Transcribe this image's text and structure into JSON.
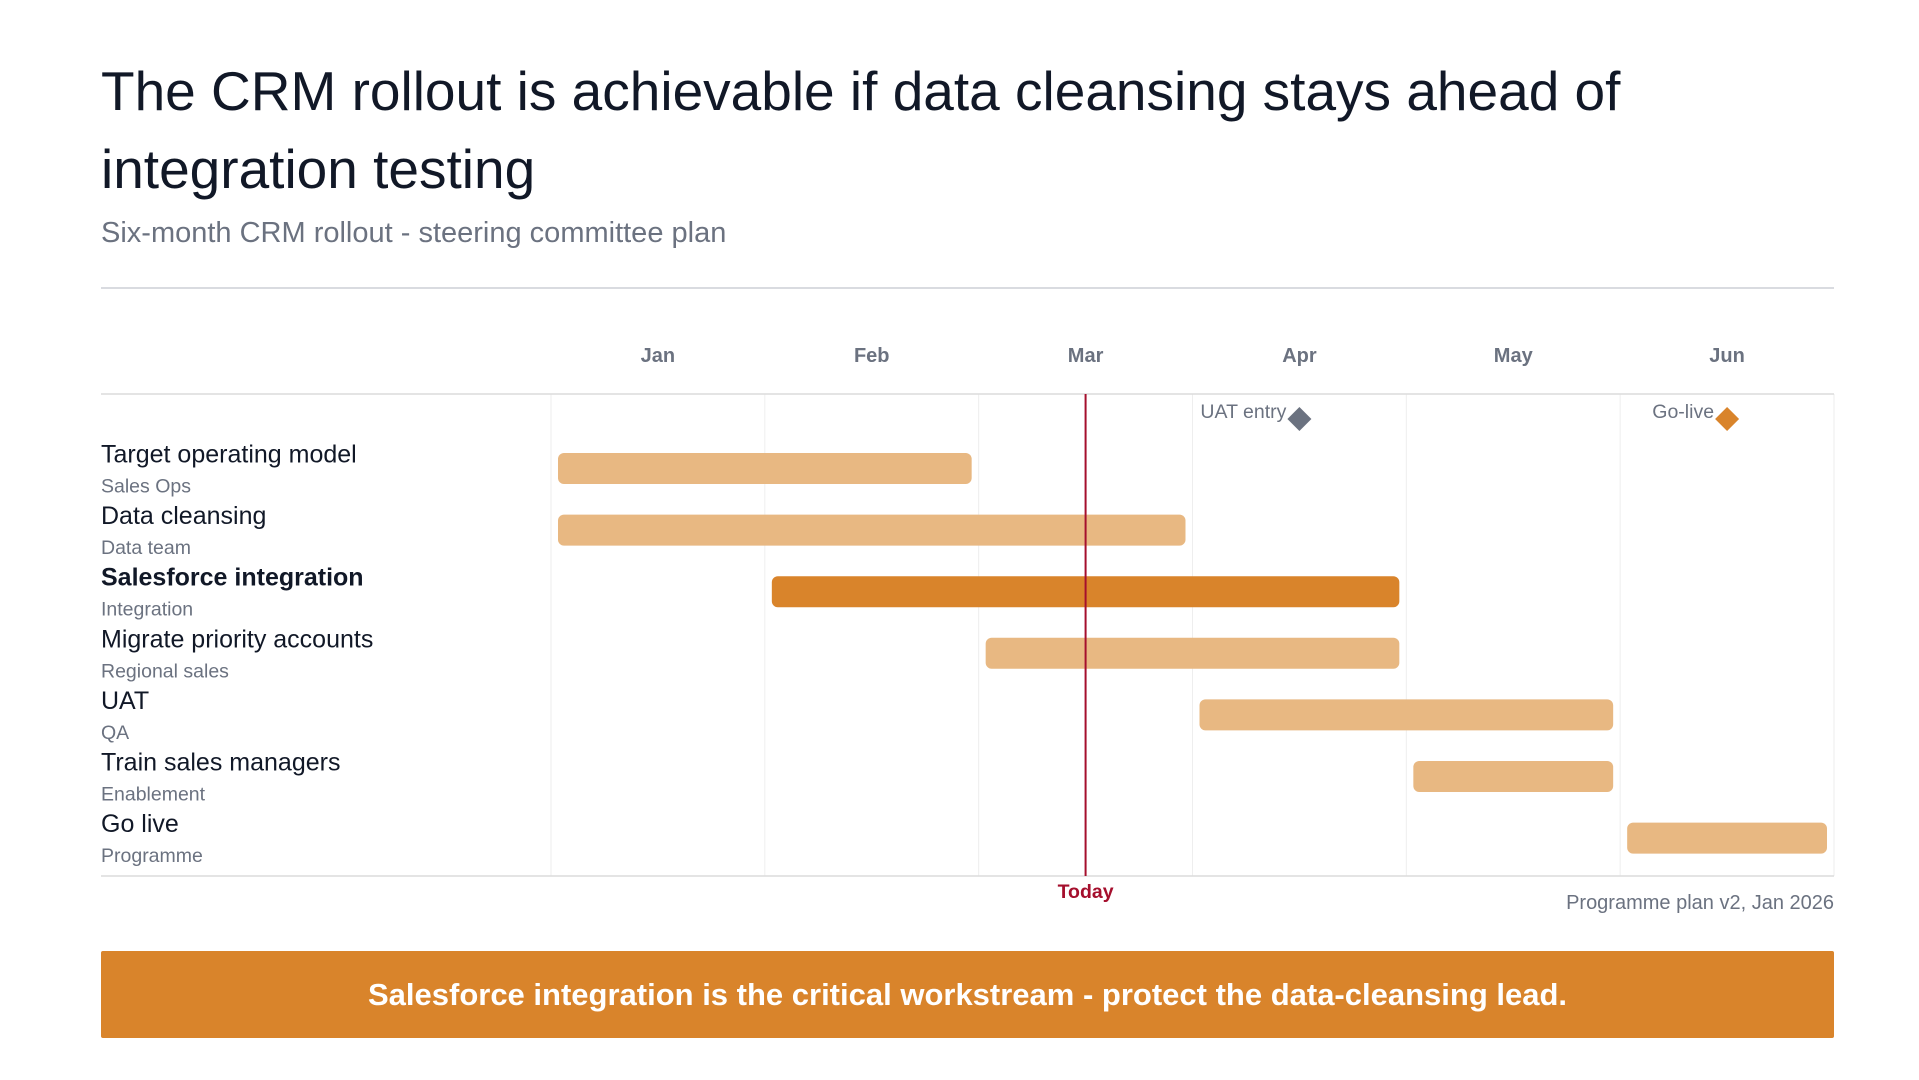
{
  "header": {
    "title": "The CRM rollout is achievable if data cleansing stays ahead of integration testing",
    "subtitle": "Six-month CRM rollout - steering committee plan"
  },
  "chart_data": {
    "type": "gantt",
    "months": [
      "Jan",
      "Feb",
      "Mar",
      "Apr",
      "May",
      "Jun"
    ],
    "today": {
      "label": "Today",
      "month_index": 2.5
    },
    "tasks": [
      {
        "name": "Target operating model",
        "owner": "Sales Ops",
        "start": 0,
        "end": 2,
        "critical": false
      },
      {
        "name": "Data cleansing",
        "owner": "Data team",
        "start": 0,
        "end": 3,
        "critical": false
      },
      {
        "name": "Salesforce integration",
        "owner": "Integration",
        "start": 1,
        "end": 4,
        "critical": true
      },
      {
        "name": "Migrate priority accounts",
        "owner": "Regional sales",
        "start": 2,
        "end": 4,
        "critical": false
      },
      {
        "name": "UAT",
        "owner": "QA",
        "start": 3,
        "end": 5,
        "critical": false
      },
      {
        "name": "Train sales managers",
        "owner": "Enablement",
        "start": 4,
        "end": 5,
        "critical": false
      },
      {
        "name": "Go live",
        "owner": "Programme",
        "start": 5,
        "end": 6,
        "critical": false
      }
    ],
    "milestones": [
      {
        "label": "UAT entry",
        "month_index": 3.5,
        "color": "#6b7280"
      },
      {
        "label": "Go-live",
        "month_index": 5.5,
        "color": "#d9842b"
      }
    ],
    "colors": {
      "bar": "#e8b882",
      "critical_bar": "#d9842b",
      "today_line": "#a50f2d",
      "grid": "#eeeeee"
    }
  },
  "footnote": "Programme plan v2, Jan 2026",
  "banner": {
    "text": "Salesforce integration is the critical workstream - protect the data-cleansing lead."
  }
}
